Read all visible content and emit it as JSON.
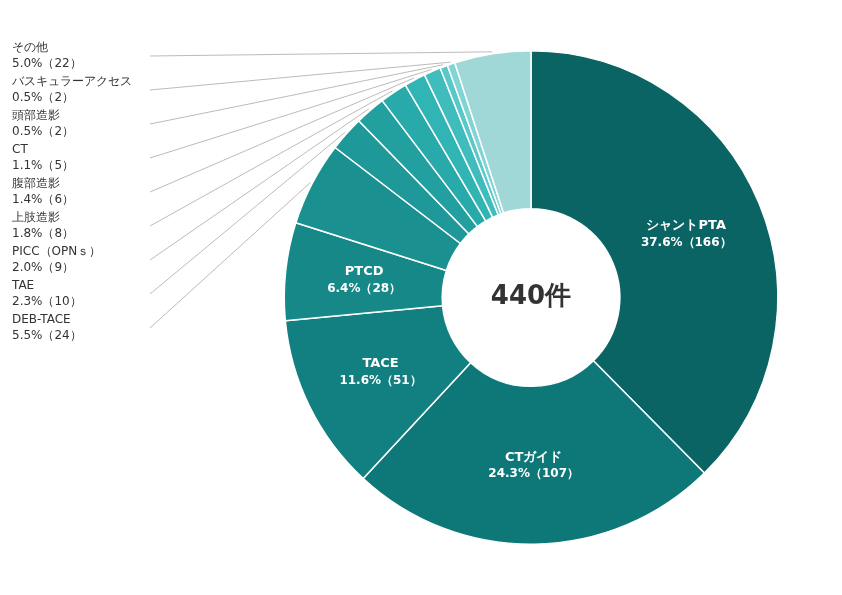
{
  "chart_data": {
    "type": "doughnut",
    "categories": [
      "シャントPTA",
      "CTガイド",
      "TACE",
      "PTCD",
      "DEB-TACE",
      "TAE",
      "PICC（OPNｓ）",
      "上肢造影",
      "腹部造影",
      "CT",
      "頭部造影",
      "バスキュラーアクセス",
      "その他"
    ],
    "values": [
      37.6,
      24.3,
      11.6,
      6.4,
      5.5,
      2.3,
      2.0,
      1.8,
      1.4,
      1.1,
      0.5,
      0.5,
      5.0
    ],
    "value_labels": [
      "37.6%（166）",
      "24.3%（107）",
      "11.6%（51）",
      "6.4%（28）",
      "5.5%（24）",
      "2.3%（10）",
      "2.0%（9）",
      "1.8%（8）",
      "1.4%（6）",
      "1.1%（5）",
      "0.5%（2）",
      "0.5%（2）",
      "5.0%（22）"
    ],
    "colors": [
      "#0a6464",
      "#0e7878",
      "#128080",
      "#168888",
      "#1a9090",
      "#1e9898",
      "#22a0a0",
      "#28aaaa",
      "#30b4b4",
      "#40bcbc",
      "#58c8c8",
      "#80d4d4",
      "#a0d8d8"
    ],
    "annotations": [
      "440件"
    ],
    "data_labels": true
  }
}
